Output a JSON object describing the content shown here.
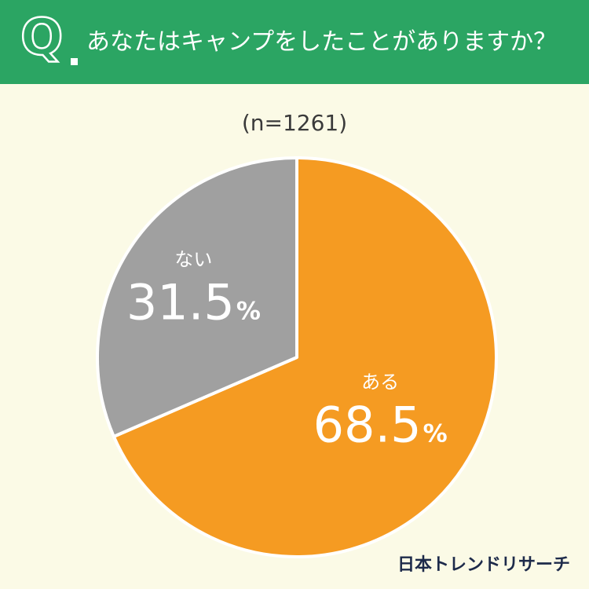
{
  "header": {
    "question_mark": "Q",
    "question": "あなたはキャンプをしたことがありますか？"
  },
  "sample_size": "(n=1261)",
  "chart_data": {
    "type": "pie",
    "categories": [
      "ある",
      "ない"
    ],
    "values": [
      68.5,
      31.5
    ],
    "value_labels": [
      "68.5",
      "31.5"
    ],
    "unit": "%",
    "colors": [
      "#f59b22",
      "#a0a0a0"
    ],
    "start": "12 o'clock",
    "direction": "clockwise"
  },
  "brand": "日本トレンドリサーチ"
}
